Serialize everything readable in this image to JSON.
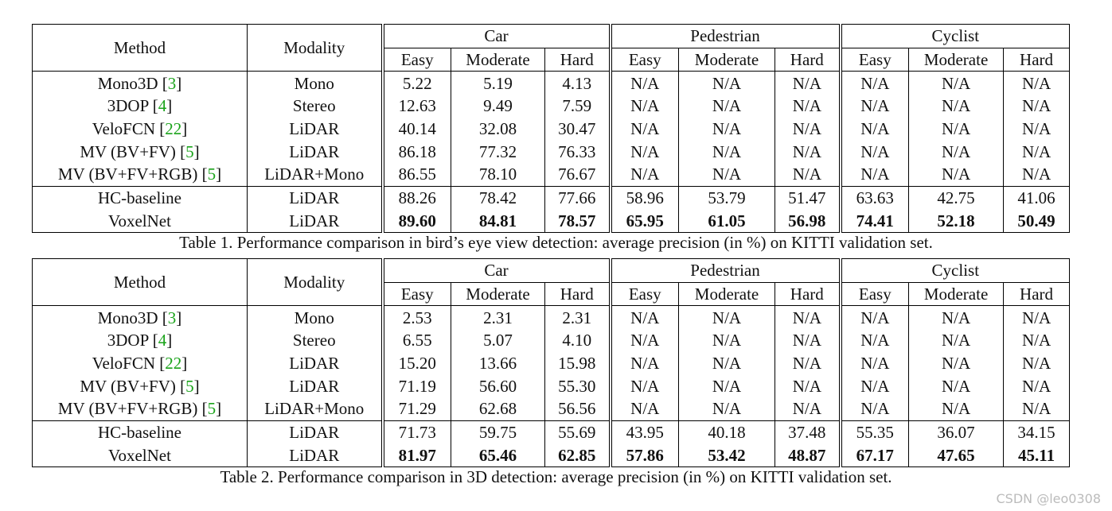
{
  "tables": [
    {
      "header": {
        "method": "Method",
        "modality": "Modality",
        "groups": [
          {
            "name": "Car",
            "columns": [
              "Easy",
              "Moderate",
              "Hard"
            ]
          },
          {
            "name": "Pedestrian",
            "columns": [
              "Easy",
              "Moderate",
              "Hard"
            ]
          },
          {
            "name": "Cyclist",
            "columns": [
              "Easy",
              "Moderate",
              "Hard"
            ]
          }
        ]
      },
      "sections": [
        [
          {
            "method": "Mono3D [3]",
            "modality": "Mono",
            "values": [
              "5.22",
              "5.19",
              "4.13",
              "N/A",
              "N/A",
              "N/A",
              "N/A",
              "N/A",
              "N/A"
            ]
          },
          {
            "method": "3DOP [4]",
            "modality": "Stereo",
            "values": [
              "12.63",
              "9.49",
              "7.59",
              "N/A",
              "N/A",
              "N/A",
              "N/A",
              "N/A",
              "N/A"
            ]
          },
          {
            "method": "VeloFCN [22]",
            "modality": "LiDAR",
            "values": [
              "40.14",
              "32.08",
              "30.47",
              "N/A",
              "N/A",
              "N/A",
              "N/A",
              "N/A",
              "N/A"
            ]
          },
          {
            "method": "MV (BV+FV) [5]",
            "modality": "LiDAR",
            "values": [
              "86.18",
              "77.32",
              "76.33",
              "N/A",
              "N/A",
              "N/A",
              "N/A",
              "N/A",
              "N/A"
            ]
          },
          {
            "method": "MV (BV+FV+RGB) [5]",
            "modality": "LiDAR+Mono",
            "values": [
              "86.55",
              "78.10",
              "76.67",
              "N/A",
              "N/A",
              "N/A",
              "N/A",
              "N/A",
              "N/A"
            ]
          }
        ],
        [
          {
            "method": "HC-baseline",
            "modality": "LiDAR",
            "values": [
              "88.26",
              "78.42",
              "77.66",
              "58.96",
              "53.79",
              "51.47",
              "63.63",
              "42.75",
              "41.06"
            ]
          },
          {
            "method": "VoxelNet",
            "modality": "LiDAR",
            "bold": true,
            "values": [
              "89.60",
              "84.81",
              "78.57",
              "65.95",
              "61.05",
              "56.98",
              "74.41",
              "52.18",
              "50.49"
            ]
          }
        ]
      ],
      "caption": "Table 1. Performance comparison in bird’s eye view detection: average precision (in %) on KITTI validation set."
    },
    {
      "header": {
        "method": "Method",
        "modality": "Modality",
        "groups": [
          {
            "name": "Car",
            "columns": [
              "Easy",
              "Moderate",
              "Hard"
            ]
          },
          {
            "name": "Pedestrian",
            "columns": [
              "Easy",
              "Moderate",
              "Hard"
            ]
          },
          {
            "name": "Cyclist",
            "columns": [
              "Easy",
              "Moderate",
              "Hard"
            ]
          }
        ]
      },
      "sections": [
        [
          {
            "method": "Mono3D [3]",
            "modality": "Mono",
            "values": [
              "2.53",
              "2.31",
              "2.31",
              "N/A",
              "N/A",
              "N/A",
              "N/A",
              "N/A",
              "N/A"
            ]
          },
          {
            "method": "3DOP [4]",
            "modality": "Stereo",
            "values": [
              "6.55",
              "5.07",
              "4.10",
              "N/A",
              "N/A",
              "N/A",
              "N/A",
              "N/A",
              "N/A"
            ]
          },
          {
            "method": "VeloFCN [22]",
            "modality": "LiDAR",
            "values": [
              "15.20",
              "13.66",
              "15.98",
              "N/A",
              "N/A",
              "N/A",
              "N/A",
              "N/A",
              "N/A"
            ]
          },
          {
            "method": "MV (BV+FV) [5]",
            "modality": "LiDAR",
            "values": [
              "71.19",
              "56.60",
              "55.30",
              "N/A",
              "N/A",
              "N/A",
              "N/A",
              "N/A",
              "N/A"
            ]
          },
          {
            "method": "MV (BV+FV+RGB) [5]",
            "modality": "LiDAR+Mono",
            "values": [
              "71.29",
              "62.68",
              "56.56",
              "N/A",
              "N/A",
              "N/A",
              "N/A",
              "N/A",
              "N/A"
            ]
          }
        ],
        [
          {
            "method": "HC-baseline",
            "modality": "LiDAR",
            "values": [
              "71.73",
              "59.75",
              "55.69",
              "43.95",
              "40.18",
              "37.48",
              "55.35",
              "36.07",
              "34.15"
            ]
          },
          {
            "method": "VoxelNet",
            "modality": "LiDAR",
            "bold": true,
            "values": [
              "81.97",
              "65.46",
              "62.85",
              "57.86",
              "53.42",
              "48.87",
              "67.17",
              "47.65",
              "45.11"
            ]
          }
        ]
      ],
      "caption": "Table 2. Performance comparison in 3D detection: average precision (in %) on KITTI validation set."
    }
  ],
  "watermark": "CSDN @leo0308"
}
